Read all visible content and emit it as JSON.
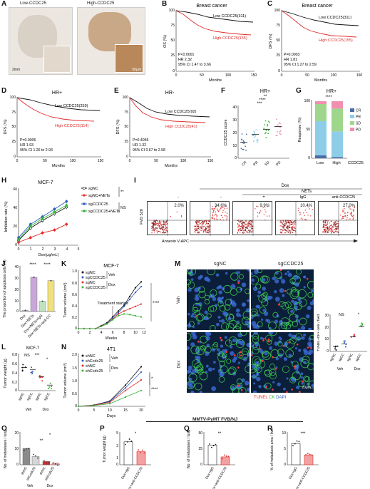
{
  "panels": {
    "A": {
      "letter": "A",
      "low_title": "Low-CCDC25",
      "high_title": "High-CCDC25",
      "scale_main": "2mm",
      "scale_inset": "50μm"
    },
    "B": {
      "letter": "B",
      "title": "Breast cancer",
      "ylabel": "OS (%)",
      "xlabel": "Months",
      "low": "Low CCDC25(311)",
      "high": "High CCDC25(155)",
      "stats": [
        "P<0.0001",
        "HR 2.32",
        "95% CI 1.47 to 3.66"
      ]
    },
    "C": {
      "letter": "C",
      "title": "Breast cancer",
      "ylabel": "DFS (%)",
      "xlabel": "Months",
      "low": "Low CCDC25(311)",
      "high": "High CCDC25(155)",
      "stats": [
        "P=0.0003",
        "HR 1.81",
        "95% CI 1.27 to 2.59"
      ]
    },
    "D": {
      "letter": "D",
      "title": "HR+",
      "ylabel": "DFS (%)",
      "xlabel": "Months",
      "low": "Low CCDC25(259)",
      "high": "High CCDC25(114)",
      "stats": [
        "P=0.0006",
        "HR 1.93",
        "95% CI 1.26 to 2.93"
      ]
    },
    "E": {
      "letter": "E",
      "title": "HR-",
      "ylabel": "DFS (%)",
      "xlabel": "Months",
      "low": "Low CCDC25(92)",
      "high": "High CCDC25(41)",
      "stats": [
        "P=0.4055",
        "HR 1.32",
        "95% CI 0.67 to 2.58"
      ]
    },
    "F": {
      "letter": "F",
      "title": "HR+",
      "ylabel": "CCDC25 score",
      "cats": [
        "CR",
        "PR",
        "SD",
        "PD"
      ],
      "sig": [
        "**",
        "****",
        "***"
      ]
    },
    "G": {
      "letter": "G",
      "title": "HR+",
      "ylabel": "Response (%)",
      "sig": "****",
      "legend": [
        "CR",
        "PR",
        "SD",
        "PD"
      ],
      "cats": [
        "Low",
        "High",
        "CCDC25"
      ]
    },
    "H": {
      "letter": "H",
      "title": "MCF-7",
      "ylabel": "Inhibition rate (%)",
      "xlabel": "Dox(μg/mL)",
      "legend": [
        "sgNC",
        "sgNC+NETs",
        "sgCCDC25",
        "sgCCDC25+NETs"
      ],
      "sig1": "**",
      "sig2": "NS"
    },
    "I": {
      "letter": "I",
      "top": "Dox",
      "nets": "NETs",
      "igg": "IgG",
      "anti": "anti-CCDC25",
      "ylabel": "FVD 520",
      "xlabel": "Annexin V-APC",
      "signs": [
        "-",
        "-",
        "+",
        "+",
        "+"
      ],
      "pcts": [
        "2.0%",
        "34.6%",
        "9.9%",
        "10.4%",
        "27.0%"
      ]
    },
    "J": {
      "letter": "J",
      "ylabel": "The proportion of apoptosis cells (%)",
      "cats": [
        "Dox",
        "Dox+NETs",
        "Dox+NETs+IgG",
        "Dox+NETs+anti-CC"
      ],
      "sig": [
        "****",
        "****"
      ]
    },
    "K": {
      "letter": "K",
      "title": "MCF-7",
      "ylabel": "Tumor volume (cm³)",
      "xlabel": "Weeks",
      "legend": [
        "sgNC",
        "sgCCDC25",
        "sgNC",
        "sgCCDC25"
      ],
      "veh": "Veh",
      "dox": "Dox",
      "note": "Treatment started",
      "sig": "****"
    },
    "L": {
      "letter": "L",
      "title": "MCF-7",
      "ylabel": "Tumor weight (g)",
      "cats": [
        "sgNC",
        "sgCC",
        "sgNC",
        "sgCC"
      ],
      "groups": [
        "Veh",
        "Dox"
      ],
      "sig": [
        "NS",
        "***",
        "*"
      ]
    },
    "M": {
      "letter": "M",
      "col1": "sgNC",
      "col2": "sgCCDC25",
      "row1": "Veh",
      "row2": "Dox",
      "scale": "20μm",
      "legend_tunel": "TUNEL",
      "legend_ck": "CK",
      "legend_dapi": "DAPI",
      "ylabel": "TUNEL+CK+ cells / field",
      "cats": [
        "sgNC",
        "sgCC",
        "sgNC",
        "sgCC"
      ],
      "groups": [
        "Veh",
        "Dox"
      ],
      "sig": [
        "NS",
        "*"
      ]
    },
    "N": {
      "letter": "N",
      "title": "4T1",
      "ylabel": "Tumor volume (cm³)",
      "xlabel": "Days",
      "legend": [
        "shNC",
        "shCcdc25",
        "shNC",
        "shCcdc25"
      ],
      "veh": "Veh",
      "dox": "Dox",
      "sig": [
        "*",
        "****"
      ]
    },
    "O": {
      "letter": "O",
      "ylabel": "No. of metastases / lung",
      "cats": [
        "shNC",
        "shCcdc25",
        "shNC",
        "shCcdc25"
      ],
      "groups": [
        "Veh",
        "Dox"
      ],
      "sig": [
        "*",
        "**"
      ]
    },
    "P": {
      "letter": "P",
      "ylabel": "Tumor weight (g)",
      "cats": [
        "Dox+IgG",
        "Dox+anti-CCDC25"
      ],
      "sig": "*"
    },
    "Q": {
      "letter": "Q",
      "ylabel": "No. of metastases / lung",
      "cats": [
        "Dox+IgG",
        "Dox+anti-CCDC25"
      ],
      "sig": "**"
    },
    "R": {
      "letter": "R",
      "ylabel": "% of metastasis area / liver",
      "cats": [
        "Dox+IgG",
        "Dox+anti-CCDC25"
      ],
      "sig": "***"
    },
    "mouse_label": "MMTV-PyMT FVB/NJ"
  },
  "colors": {
    "low": "#111111",
    "high": "#e02b2b",
    "green": "#36b536",
    "blue": "#2b5ac0",
    "grey": "#8a8a8a",
    "cr": "#4a6da7",
    "pr": "#8ecde8",
    "sd": "#9ed68c",
    "pd": "#f08fb0"
  },
  "chart_data": [
    {
      "panel": "F",
      "type": "scatter",
      "categories": [
        "CR",
        "PR",
        "SD",
        "PD"
      ],
      "values": [
        12,
        18,
        22,
        24
      ]
    },
    {
      "panel": "G",
      "type": "bar",
      "categories": [
        "Low",
        "High"
      ],
      "series": [
        {
          "name": "CR",
          "values": [
            5,
            2
          ]
        },
        {
          "name": "PR",
          "values": [
            60,
            45
          ]
        },
        {
          "name": "SD",
          "values": [
            30,
            40
          ]
        },
        {
          "name": "PD",
          "values": [
            5,
            13
          ]
        }
      ],
      "ylim": [
        0,
        100
      ]
    },
    {
      "panel": "H",
      "type": "line",
      "x": [
        0,
        1,
        2,
        3,
        4
      ],
      "series": [
        {
          "name": "sgNC",
          "values": [
            5,
            18,
            26,
            33,
            40
          ]
        },
        {
          "name": "sgNC+NETs",
          "values": [
            3,
            8,
            13,
            16,
            22
          ]
        },
        {
          "name": "sgCCDC25",
          "values": [
            8,
            22,
            30,
            38,
            46
          ]
        },
        {
          "name": "sgCCDC25+NETs",
          "values": [
            6,
            20,
            28,
            35,
            42
          ]
        }
      ],
      "ylim": [
        0,
        60
      ],
      "xlim": [
        0,
        5
      ]
    },
    {
      "panel": "J",
      "type": "bar",
      "categories": [
        "Dox",
        "Dox+NETs",
        "Dox+NETs+IgG",
        "Dox+NETs+anti-CC"
      ],
      "values": [
        1,
        30,
        9,
        27
      ],
      "ylim": [
        0,
        40
      ]
    },
    {
      "panel": "K",
      "type": "line",
      "x": [
        0,
        1,
        2,
        3,
        4,
        5,
        6,
        7,
        8,
        9,
        10,
        11
      ],
      "series": [
        {
          "name": "sgNC Veh",
          "values": [
            0,
            0,
            0,
            0,
            0.05,
            0.1,
            0.2,
            0.3,
            0.4,
            0.55,
            0.7,
            0.8
          ]
        },
        {
          "name": "sgCCDC25 Veh",
          "values": [
            0,
            0,
            0,
            0,
            0.04,
            0.08,
            0.18,
            0.27,
            0.38,
            0.5,
            0.62,
            0.72
          ]
        },
        {
          "name": "sgNC Dox",
          "values": [
            0,
            0,
            0,
            0,
            0.04,
            0.08,
            0.16,
            0.25,
            0.3,
            0.34,
            0.38,
            0.42
          ]
        },
        {
          "name": "sgCCDC25 Dox",
          "values": [
            0,
            0,
            0,
            0,
            0.04,
            0.08,
            0.15,
            0.22,
            0.25,
            0.24,
            0.22,
            0.2
          ]
        }
      ],
      "ylim": [
        0,
        1
      ]
    },
    {
      "panel": "L",
      "type": "scatter",
      "categories": [
        "sgNC",
        "sgCC",
        "sgNC",
        "sgCC"
      ],
      "values": [
        0.5,
        0.45,
        0.3,
        0.12
      ],
      "ylim": [
        0,
        0.8
      ]
    },
    {
      "panel": "M",
      "type": "scatter",
      "categories": [
        "sgNC",
        "sgCC",
        "sgNC",
        "sgCC"
      ],
      "values": [
        4,
        6,
        12,
        20
      ],
      "ylim": [
        0,
        30
      ]
    },
    {
      "panel": "N",
      "type": "line",
      "x": [
        0,
        5,
        10,
        15,
        20
      ],
      "series": [
        {
          "name": "shNC Veh",
          "values": [
            0,
            0.05,
            0.2,
            0.8,
            1.5
          ]
        },
        {
          "name": "shCcdc25 Veh",
          "values": [
            0,
            0.04,
            0.18,
            0.7,
            1.3
          ]
        },
        {
          "name": "shNC Dox",
          "values": [
            0,
            0.04,
            0.15,
            0.6,
            1.0
          ]
        },
        {
          "name": "shCcdc25 Dox",
          "values": [
            0,
            0.03,
            0.1,
            0.35,
            0.6
          ]
        }
      ],
      "ylim": [
        0,
        2
      ]
    },
    {
      "panel": "O",
      "type": "bar",
      "categories": [
        "shNC",
        "shCcdc25",
        "shNC",
        "shCcdc25"
      ],
      "values": [
        10,
        5,
        2,
        1
      ],
      "ylim": [
        0,
        20
      ]
    },
    {
      "panel": "P",
      "type": "bar",
      "categories": [
        "Dox+IgG",
        "Dox+anti-CCDC25"
      ],
      "values": [
        3.5,
        2
      ],
      "ylim": [
        0,
        5
      ]
    },
    {
      "panel": "Q",
      "type": "bar",
      "categories": [
        "Dox+IgG",
        "Dox+anti-CCDC25"
      ],
      "values": [
        30,
        12
      ],
      "ylim": [
        0,
        50
      ]
    },
    {
      "panel": "R",
      "type": "bar",
      "categories": [
        "Dox+IgG",
        "Dox+anti-CCDC25"
      ],
      "values": [
        6.5,
        3
      ],
      "ylim": [
        0,
        10
      ]
    }
  ]
}
